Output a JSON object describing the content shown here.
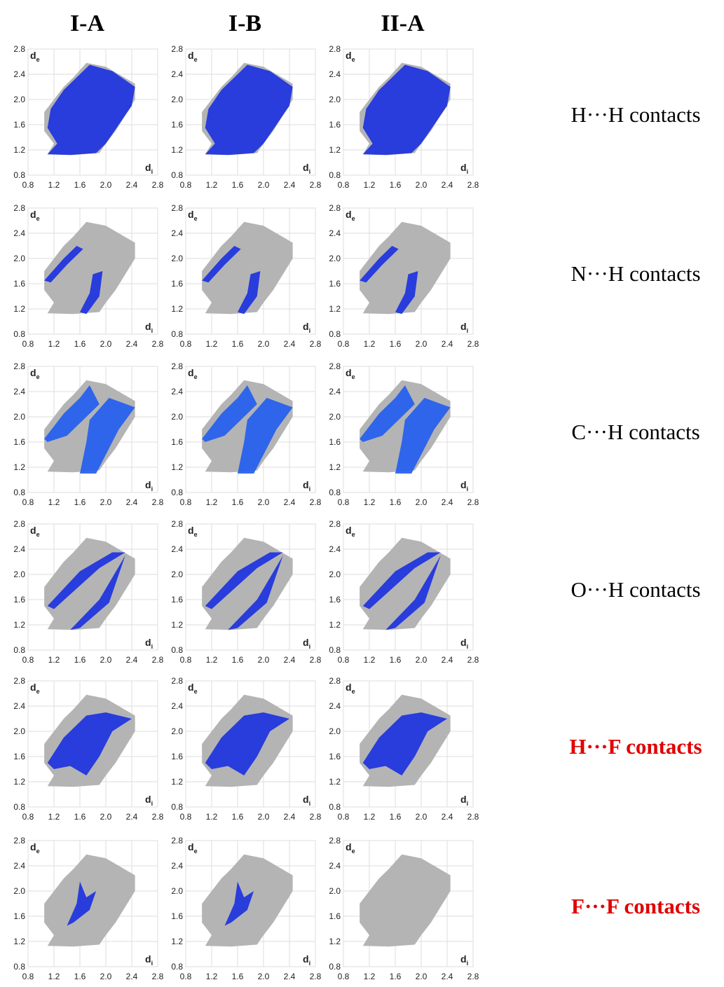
{
  "columns": [
    "I-A",
    "I-B",
    "II-A"
  ],
  "rows": [
    {
      "label": "H···H contacts",
      "color": "#000000",
      "bold": false
    },
    {
      "label": "N···H contacts",
      "color": "#000000",
      "bold": false
    },
    {
      "label": "C···H contacts",
      "color": "#000000",
      "bold": false
    },
    {
      "label": "O···H contacts",
      "color": "#000000",
      "bold": false
    },
    {
      "label": "H···F contacts",
      "color": "#e00000",
      "bold": true
    },
    {
      "label": "F···F contacts",
      "color": "#e00000",
      "bold": true
    }
  ],
  "axes": {
    "xlabel": "d",
    "xsub": "i",
    "ylabel": "d",
    "ysub": "e",
    "lim": [
      0.8,
      2.8
    ],
    "ticks": [
      0.8,
      1.2,
      1.6,
      {
        "value": 2,
        "label": "2.0"
      },
      2.4,
      2.8
    ]
  }
}
